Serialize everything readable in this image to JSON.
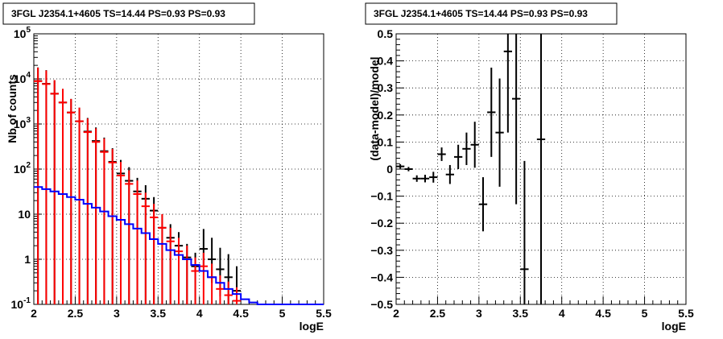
{
  "chart_data": [
    {
      "type": "histogram",
      "title": "3FGL J2354.1+4605 TS=14.44 PS=0.93 PS=0.93",
      "xlabel": "logE",
      "ylabel": "Nb of counts",
      "xlim": [
        2,
        5.5
      ],
      "ylim": [
        0.1,
        100000
      ],
      "yscale": "log",
      "grid": true,
      "x_ticks": [
        "2",
        "2.5",
        "3",
        "3.5",
        "4",
        "4.5",
        "5",
        "5.5"
      ],
      "y_ticks": [
        {
          "base": "10",
          "exp": "-1",
          "value": 0.1,
          "plain": "10"
        },
        {
          "base": "1",
          "exp": "",
          "value": 1
        },
        {
          "base": "10",
          "exp": "",
          "value": 10
        },
        {
          "base": "10",
          "exp": "2",
          "value": 100
        },
        {
          "base": "10",
          "exp": "3",
          "value": 1000
        },
        {
          "base": "10",
          "exp": "4",
          "value": 10000
        },
        {
          "base": "10",
          "exp": "5",
          "value": 100000
        }
      ],
      "series": [
        {
          "kind": "points",
          "color": "#000000",
          "x": [
            2.05,
            2.15,
            2.25,
            2.35,
            2.45,
            2.55,
            2.65,
            2.75,
            2.85,
            2.95,
            3.05,
            3.15,
            3.25,
            3.35,
            3.45,
            3.55,
            3.65,
            3.75,
            3.85,
            3.95,
            4.05,
            4.15,
            4.25,
            4.35,
            4.45
          ],
          "y": [
            9000,
            7800,
            4700,
            3000,
            1800,
            1150,
            680,
            420,
            250,
            145,
            80,
            55,
            32,
            22,
            12,
            5,
            3,
            2,
            1.1,
            0.7,
            1.7,
            1.0,
            0.6,
            0.4,
            0.2
          ],
          "yerr_low": [
            9000,
            7800,
            4700,
            3000,
            1800,
            1150,
            680,
            420,
            250,
            145,
            80,
            55,
            32,
            22,
            12,
            5,
            3,
            2,
            1.1,
            0.7,
            1.0,
            0.7,
            0.45,
            0.3,
            0.16
          ],
          "yerr_high": [
            9000,
            7800,
            4700,
            3000,
            1800,
            1150,
            680,
            420,
            250,
            145,
            80,
            55,
            32,
            22,
            12,
            5,
            3,
            2,
            1.1,
            0.7,
            3.0,
            2.0,
            1.2,
            0.9,
            0.5
          ]
        },
        {
          "kind": "points",
          "color": "#ff0000",
          "x": [
            2.05,
            2.15,
            2.25,
            2.35,
            2.45,
            2.55,
            2.65,
            2.75,
            2.85,
            2.95,
            3.05,
            3.15,
            3.25,
            3.35,
            3.45,
            3.55,
            3.65,
            3.75,
            3.85,
            3.95,
            4.05,
            4.15,
            4.25,
            4.35,
            4.45
          ],
          "y": [
            8900,
            7700,
            4700,
            3000,
            1800,
            1150,
            660,
            400,
            240,
            140,
            72,
            47,
            28,
            15,
            8.5,
            5,
            2.5,
            1.5,
            1.0,
            0.55,
            0.7,
            0.4,
            0.22,
            0.16,
            0.12
          ],
          "yerr_low": [
            8900,
            7700,
            4700,
            3000,
            1800,
            1150,
            660,
            400,
            240,
            140,
            72,
            47,
            28,
            15,
            8.5,
            5,
            2.5,
            1.5,
            0.9,
            0.5,
            0.6,
            0.35,
            0.2,
            0.15,
            0.1
          ],
          "yerr_high": [
            8900,
            7700,
            4700,
            3000,
            1800,
            1150,
            660,
            400,
            240,
            140,
            72,
            47,
            28,
            15,
            8.5,
            5,
            2.5,
            1.5,
            1.0,
            0.55,
            0.7,
            0.4,
            0.22,
            0.16,
            0.12
          ]
        },
        {
          "kind": "step",
          "color": "#0000ff",
          "edges": [
            2.0,
            2.1,
            2.2,
            2.3,
            2.4,
            2.5,
            2.6,
            2.7,
            2.8,
            2.9,
            3.0,
            3.1,
            3.2,
            3.3,
            3.4,
            3.5,
            3.6,
            3.7,
            3.8,
            3.9,
            4.0,
            4.1,
            4.2,
            4.3,
            4.4,
            4.5,
            4.6,
            4.7,
            5.5
          ],
          "values": [
            40,
            36,
            32,
            28,
            24,
            21,
            17,
            14,
            11.5,
            9,
            7.5,
            6,
            4.8,
            3.8,
            2.8,
            2.2,
            1.6,
            1.25,
            1.0,
            0.75,
            0.55,
            0.4,
            0.3,
            0.22,
            0.17,
            0.13,
            0.11,
            0.1
          ]
        }
      ]
    },
    {
      "type": "scatter",
      "title": "3FGL J2354.1+4605 TS=14.44 PS=0.93 PS=0.93",
      "xlabel": "logE",
      "ylabel": "(data-model)/model",
      "xlim": [
        2,
        5.5
      ],
      "ylim": [
        -0.5,
        0.5
      ],
      "grid": true,
      "x_ticks": [
        "2",
        "2.5",
        "3",
        "3.5",
        "4",
        "4.5",
        "5",
        "5.5"
      ],
      "y_ticks": [
        "−0.5",
        "−0.4",
        "−0.3",
        "−0.2",
        "−0.1",
        "0",
        "0.1",
        "0.2",
        "0.3",
        "0.4",
        "0.5"
      ],
      "y_tick_values": [
        -0.5,
        -0.4,
        -0.3,
        -0.2,
        -0.1,
        0,
        0.1,
        0.2,
        0.3,
        0.4,
        0.5
      ],
      "series": [
        {
          "kind": "points",
          "color": "#000000",
          "x": [
            2.05,
            2.15,
            2.25,
            2.35,
            2.45,
            2.55,
            2.65,
            2.75,
            2.85,
            2.95,
            3.05,
            3.15,
            3.25,
            3.35,
            3.45,
            3.55,
            3.75
          ],
          "y": [
            0.01,
            0.0,
            -0.035,
            -0.035,
            -0.03,
            0.055,
            -0.02,
            0.045,
            0.075,
            0.09,
            -0.13,
            0.21,
            0.135,
            0.435,
            0.26,
            -0.37,
            0.11
          ],
          "yerr": [
            0.008,
            0.008,
            0.012,
            0.014,
            0.02,
            0.025,
            0.035,
            0.045,
            0.06,
            0.085,
            0.1,
            0.165,
            0.2,
            0.3,
            0.39,
            0.4,
            0.65
          ]
        }
      ]
    }
  ]
}
